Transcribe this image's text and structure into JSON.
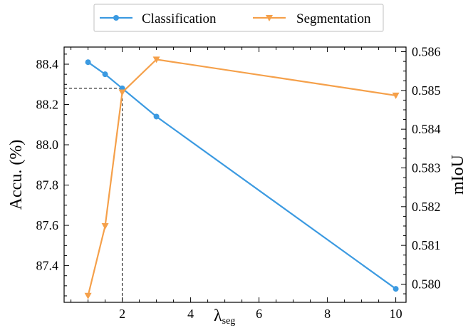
{
  "chart_data": {
    "type": "line",
    "x": [
      1,
      1.5,
      2,
      3,
      10
    ],
    "xlabel": {
      "main": "λ",
      "sub": "seg"
    },
    "xlim": [
      0.3,
      10.3
    ],
    "xticks": [
      2,
      4,
      6,
      8,
      10
    ],
    "xtick_labels": [
      "2",
      "4",
      "6",
      "8",
      "10"
    ],
    "left_axis": {
      "label": "Accu. (%)",
      "ylim": [
        87.218,
        88.485
      ],
      "ticks": [
        87.4,
        87.6,
        87.8,
        88.0,
        88.2,
        88.4
      ],
      "tick_labels": [
        "87.4",
        "87.6",
        "87.8",
        "88.0",
        "88.2",
        "88.4"
      ]
    },
    "right_axis": {
      "label": "mIoU",
      "ylim": [
        0.57953,
        0.58612
      ],
      "ticks": [
        0.58,
        0.581,
        0.582,
        0.583,
        0.584,
        0.585,
        0.586
      ],
      "tick_labels": [
        "0.580",
        "0.581",
        "0.582",
        "0.583",
        "0.584",
        "0.585",
        "0.586"
      ]
    },
    "series": [
      {
        "name": "Classification",
        "axis": "left",
        "marker": "circle",
        "color": "#3b9ae1",
        "values": [
          88.41,
          88.35,
          88.28,
          88.14,
          87.285
        ]
      },
      {
        "name": "Segmentation",
        "axis": "right",
        "marker": "triangle-down",
        "color": "#f5a04a",
        "values": [
          0.5797,
          0.5815,
          0.58495,
          0.5858,
          0.58487
        ]
      }
    ],
    "reference_point": {
      "x": 2,
      "y": 88.28,
      "axis": "left",
      "style": "dashed"
    },
    "legend": {
      "position": "top-center",
      "entries": [
        "Classification",
        "Segmentation"
      ]
    }
  }
}
